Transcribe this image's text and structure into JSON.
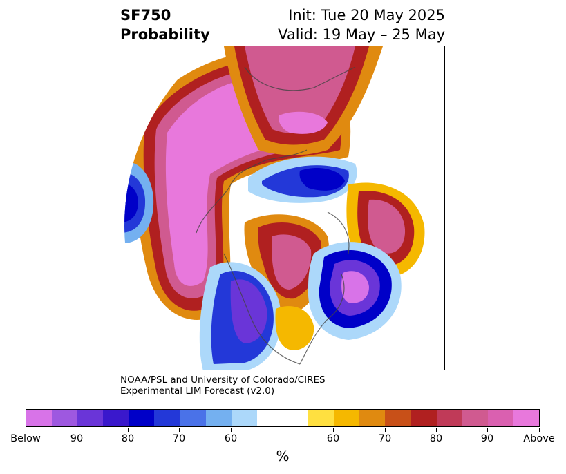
{
  "title": {
    "left_line1": "SF750",
    "left_line2": "Probability",
    "right_line1": "Init: Tue 20 May 2025",
    "right_line2": "Valid: 19 May – 25 May"
  },
  "credit": {
    "line1": "NOAA/PSL and University of Colorado/CIRES",
    "line2": "Experimental LIM Forecast (v2.0)"
  },
  "map": {
    "projection": "polar-stereographic",
    "region": "Northern Hemisphere (North Pacific, North America, Arctic)"
  },
  "colorbar": {
    "unit": "%",
    "colors": [
      "#d873e8",
      "#9e58e0",
      "#6a35d8",
      "#3a18cc",
      "#0000c8",
      "#2338d8",
      "#4a72e8",
      "#74b0f0",
      "#acd8fa",
      "#ffffff",
      "#ffe040",
      "#f5b800",
      "#e08a10",
      "#c85018",
      "#b02020",
      "#c03a58",
      "#d05a90",
      "#da60b0",
      "#e878dc"
    ],
    "tick_labels": [
      "Below",
      "90",
      "80",
      "70",
      "60",
      "60",
      "70",
      "80",
      "90",
      "Above"
    ]
  }
}
